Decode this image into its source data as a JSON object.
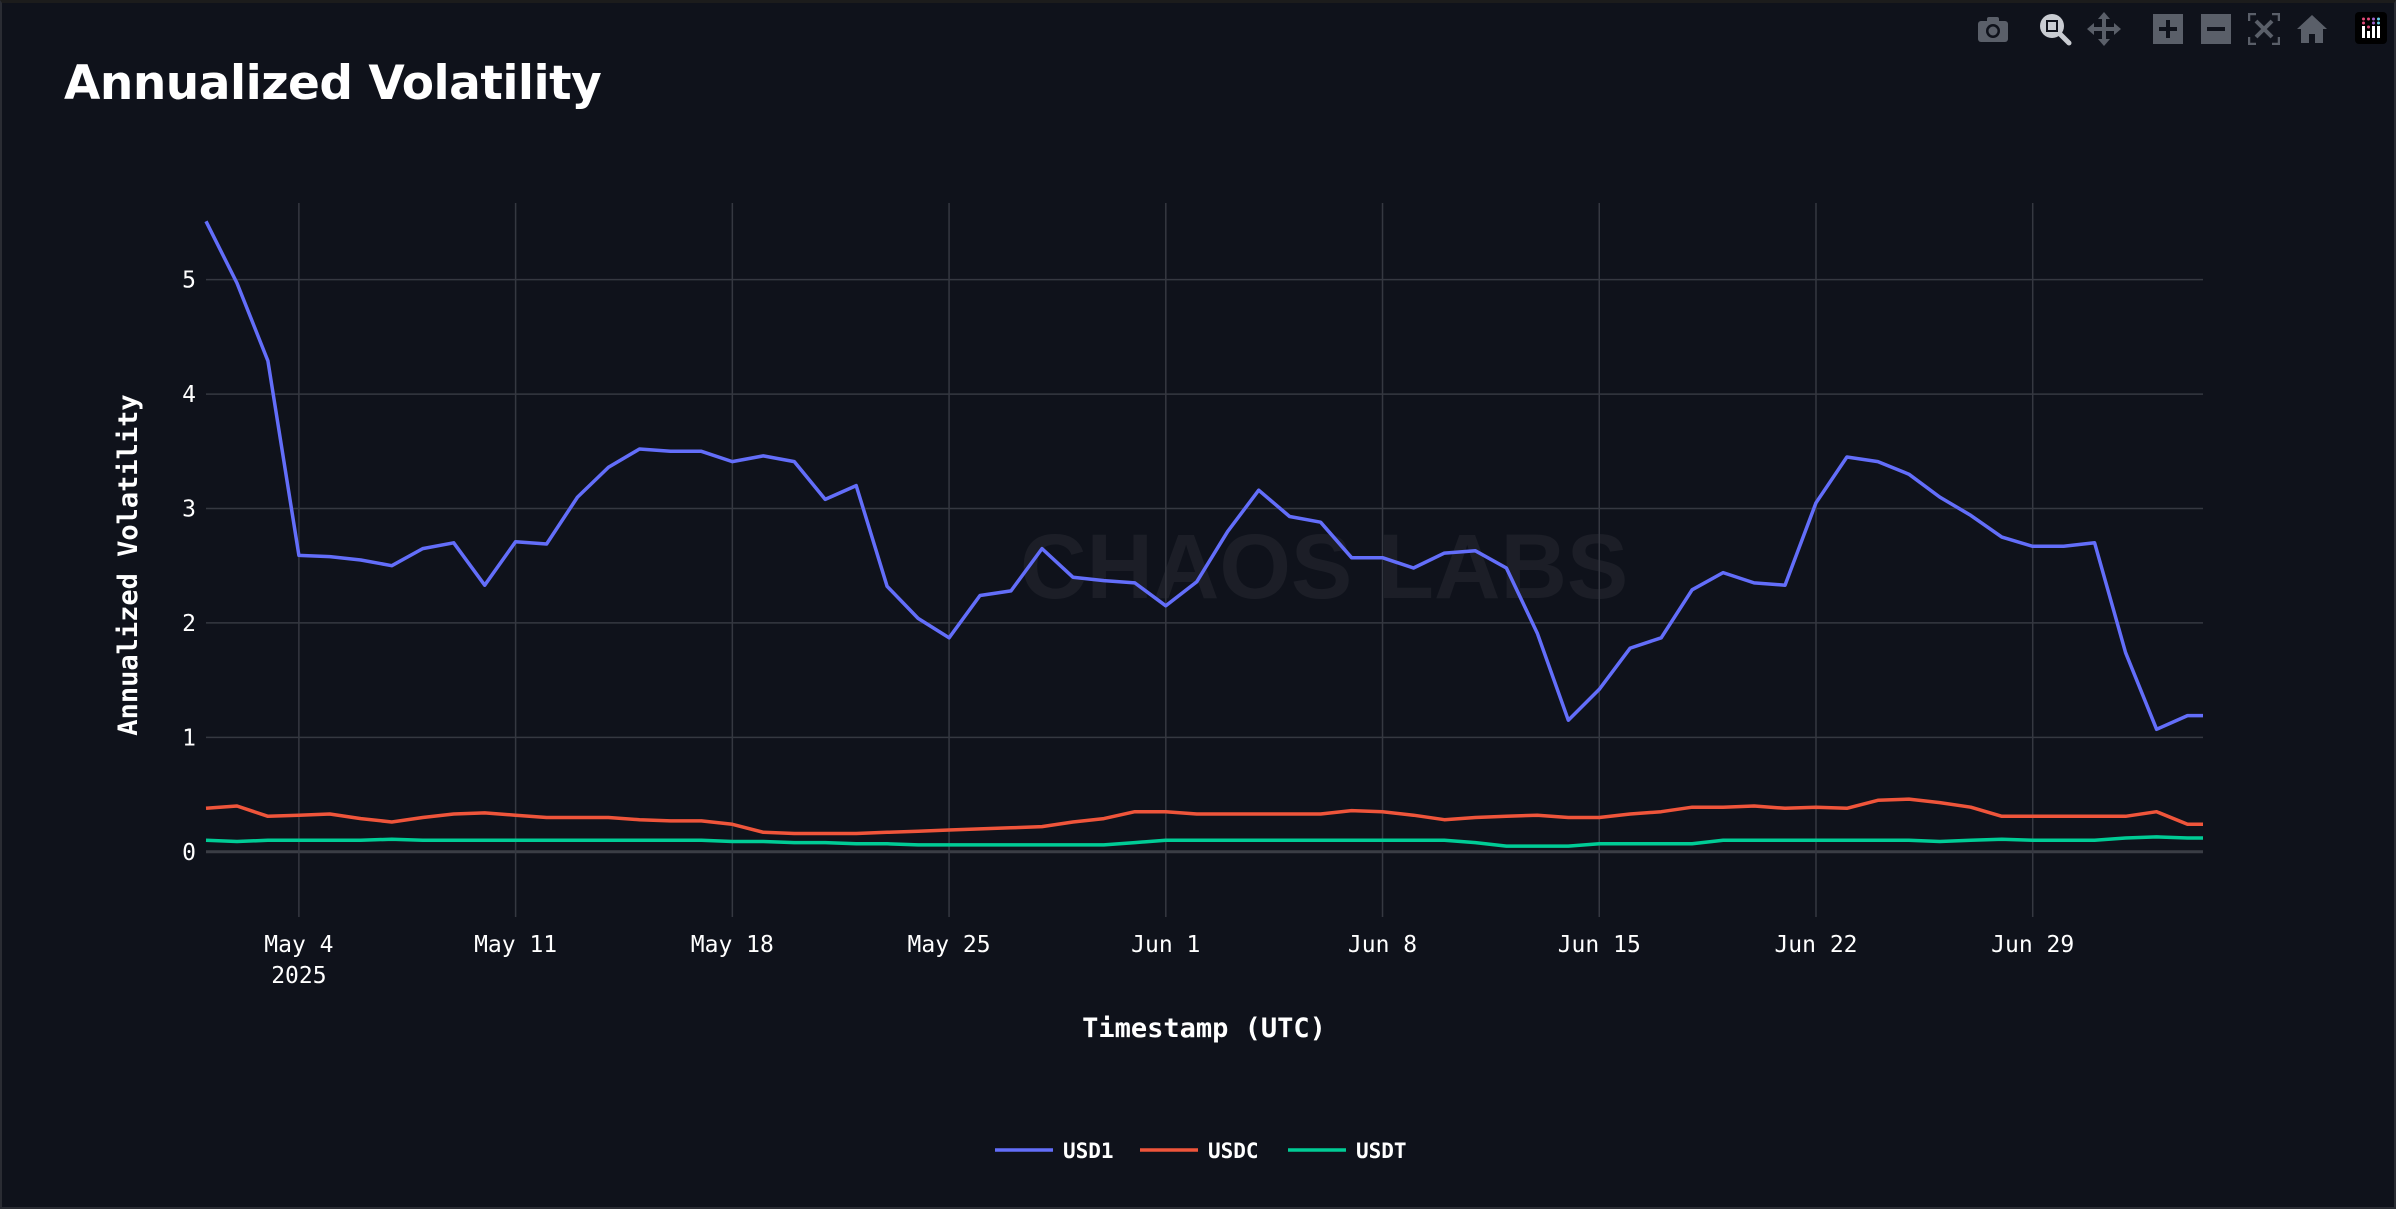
{
  "title": "Annualized Volatility",
  "watermark": "CHAOS LABS",
  "toolbar": [
    "camera-icon",
    "zoom-icon",
    "pan-icon",
    "zoom-in-icon",
    "zoom-out-icon",
    "autoscale-icon",
    "home-icon",
    "plotly-logo-icon"
  ],
  "chart_data": {
    "type": "line",
    "title": "Annualized Volatility",
    "xlabel": "Timestamp (UTC)",
    "ylabel": "Annualized Volatility",
    "ylim": [
      -0.57,
      5.67
    ],
    "xlim": [
      "2025-05-01",
      "2025-07-04T12:00"
    ],
    "grid": true,
    "legend_position": "bottom-center",
    "yticks": [
      "0",
      "1",
      "2",
      "3",
      "4",
      "5"
    ],
    "xticks": [
      {
        "date": "2025-05-04",
        "label": "May 4",
        "sub": "2025"
      },
      {
        "date": "2025-05-11",
        "label": "May 11"
      },
      {
        "date": "2025-05-18",
        "label": "May 18"
      },
      {
        "date": "2025-05-25",
        "label": "May 25"
      },
      {
        "date": "2025-06-01",
        "label": "Jun 1"
      },
      {
        "date": "2025-06-08",
        "label": "Jun 8"
      },
      {
        "date": "2025-06-15",
        "label": "Jun 15"
      },
      {
        "date": "2025-06-22",
        "label": "Jun 22"
      },
      {
        "date": "2025-06-29",
        "label": "Jun 29"
      }
    ],
    "x_start": "2025-05-01",
    "x_step_days": 1,
    "series": [
      {
        "name": "USD1",
        "color": "#636efa",
        "values": [
          5.51,
          4.97,
          4.29,
          2.59,
          2.58,
          2.55,
          2.5,
          2.65,
          2.7,
          2.33,
          2.71,
          2.69,
          3.1,
          3.36,
          3.52,
          3.5,
          3.5,
          3.41,
          3.46,
          3.41,
          3.08,
          3.2,
          2.32,
          2.04,
          1.87,
          2.24,
          2.28,
          2.65,
          2.4,
          2.37,
          2.35,
          2.15,
          2.36,
          2.8,
          3.16,
          2.93,
          2.88,
          2.57,
          2.57,
          2.48,
          2.61,
          2.63,
          2.48,
          1.91,
          1.15,
          1.42,
          1.78,
          1.87,
          2.29,
          2.44,
          2.35,
          2.33,
          3.05,
          3.45,
          3.41,
          3.3,
          3.1,
          2.94,
          2.75,
          2.67,
          2.67,
          2.7,
          1.74,
          1.07,
          1.19
        ]
      },
      {
        "name": "USDC",
        "color": "#ef553b",
        "values": [
          0.38,
          0.4,
          0.31,
          0.32,
          0.33,
          0.29,
          0.26,
          0.3,
          0.33,
          0.34,
          0.32,
          0.3,
          0.3,
          0.3,
          0.28,
          0.27,
          0.27,
          0.24,
          0.17,
          0.16,
          0.16,
          0.16,
          0.17,
          0.18,
          0.19,
          0.2,
          0.21,
          0.22,
          0.26,
          0.29,
          0.35,
          0.35,
          0.33,
          0.33,
          0.33,
          0.33,
          0.33,
          0.36,
          0.35,
          0.32,
          0.28,
          0.3,
          0.31,
          0.32,
          0.3,
          0.3,
          0.33,
          0.35,
          0.39,
          0.39,
          0.4,
          0.38,
          0.39,
          0.38,
          0.45,
          0.46,
          0.43,
          0.39,
          0.31,
          0.31,
          0.31,
          0.31,
          0.31,
          0.35,
          0.24
        ]
      },
      {
        "name": "USDT",
        "color": "#00cc96",
        "values": [
          0.1,
          0.09,
          0.1,
          0.1,
          0.1,
          0.1,
          0.11,
          0.1,
          0.1,
          0.1,
          0.1,
          0.1,
          0.1,
          0.1,
          0.1,
          0.1,
          0.1,
          0.09,
          0.09,
          0.08,
          0.08,
          0.07,
          0.07,
          0.06,
          0.06,
          0.06,
          0.06,
          0.06,
          0.06,
          0.06,
          0.08,
          0.1,
          0.1,
          0.1,
          0.1,
          0.1,
          0.1,
          0.1,
          0.1,
          0.1,
          0.1,
          0.08,
          0.05,
          0.05,
          0.05,
          0.07,
          0.07,
          0.07,
          0.07,
          0.1,
          0.1,
          0.1,
          0.1,
          0.1,
          0.1,
          0.1,
          0.09,
          0.1,
          0.11,
          0.1,
          0.1,
          0.1,
          0.12,
          0.13,
          0.12
        ]
      }
    ]
  }
}
